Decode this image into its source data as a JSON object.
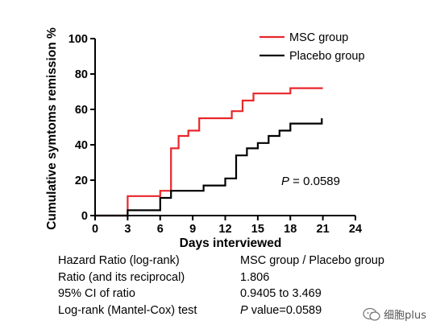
{
  "chart_data": {
    "type": "line",
    "step": true,
    "xlabel": "Days interviewed",
    "ylabel": "Cumulative symtoms remission %",
    "xlim": [
      0,
      24
    ],
    "ylim": [
      0,
      100
    ],
    "x_ticks": [
      0,
      3,
      6,
      9,
      12,
      15,
      18,
      21,
      24
    ],
    "x_tick_labels": [
      "0",
      "3",
      "6",
      "9",
      "12",
      "15",
      "18",
      "21",
      "24"
    ],
    "y_ticks": [
      0,
      20,
      40,
      60,
      80,
      100
    ],
    "y_tick_labels": [
      "0",
      "20",
      "40",
      "60",
      "80",
      "100"
    ],
    "legend_position": "top-right",
    "annotation": {
      "prefix": "P",
      "text": " = 0.0589"
    },
    "series": [
      {
        "name": "MSC group",
        "color": "#e8262b",
        "points": [
          [
            0,
            0
          ],
          [
            3,
            0
          ],
          [
            3,
            11
          ],
          [
            6,
            11
          ],
          [
            6,
            14
          ],
          [
            7,
            14
          ],
          [
            7,
            38
          ],
          [
            7.7,
            38
          ],
          [
            7.7,
            45
          ],
          [
            8.6,
            45
          ],
          [
            8.6,
            48
          ],
          [
            9.6,
            48
          ],
          [
            9.6,
            55
          ],
          [
            12.6,
            55
          ],
          [
            12.6,
            59
          ],
          [
            13.6,
            59
          ],
          [
            13.6,
            65
          ],
          [
            14.6,
            65
          ],
          [
            14.6,
            69
          ],
          [
            18,
            69
          ],
          [
            18,
            72
          ],
          [
            21,
            72
          ]
        ]
      },
      {
        "name": "Placebo group",
        "color": "#000000",
        "points": [
          [
            0,
            0
          ],
          [
            3,
            0
          ],
          [
            3,
            3
          ],
          [
            6,
            3
          ],
          [
            6,
            10
          ],
          [
            7,
            10
          ],
          [
            7,
            14
          ],
          [
            10,
            14
          ],
          [
            10,
            17
          ],
          [
            12,
            17
          ],
          [
            12,
            21
          ],
          [
            13,
            21
          ],
          [
            13,
            34
          ],
          [
            14,
            34
          ],
          [
            14,
            38
          ],
          [
            15,
            38
          ],
          [
            15,
            41
          ],
          [
            16,
            41
          ],
          [
            16,
            45
          ],
          [
            17,
            45
          ],
          [
            17,
            48
          ],
          [
            18,
            48
          ],
          [
            18,
            52
          ],
          [
            20.9,
            52
          ],
          [
            20.9,
            55
          ]
        ]
      }
    ]
  },
  "stats_table": [
    {
      "label": "Hazard Ratio (log-rank)",
      "value": "MSC group / Placebo group"
    },
    {
      "label": "Ratio (and its reciprocal)",
      "value": "1.806"
    },
    {
      "label": "95% CI of ratio",
      "value": "0.9405 to 3.469"
    },
    {
      "label": "Log-rank (Mantel-Cox) test",
      "value_prefix": "P",
      "value": " value=0.0589"
    }
  ],
  "watermark": {
    "text": "细胞plus",
    "icon": "chat-bubble-icon"
  }
}
